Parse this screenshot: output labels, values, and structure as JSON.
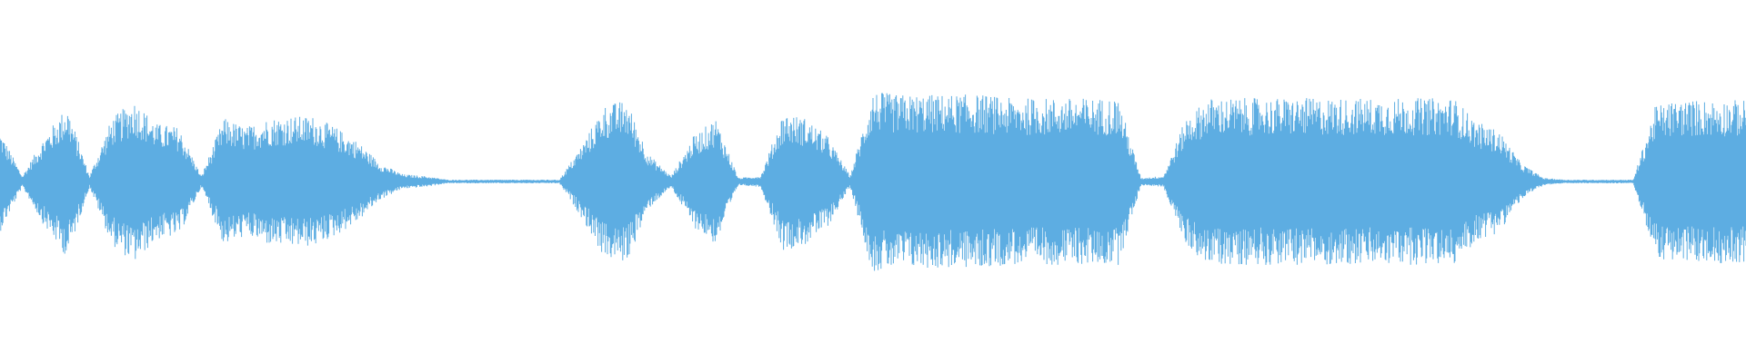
{
  "chart_data": {
    "type": "area",
    "title": "",
    "xlabel": "",
    "ylabel": "",
    "ylim": [
      -1,
      1
    ],
    "grid": false,
    "color": "#5dade2",
    "background": "#ffffff",
    "envelope": [
      0.28,
      0.03,
      0.25,
      0.42,
      0.03,
      0.35,
      0.45,
      0.32,
      0.3,
      0.03,
      0.35,
      0.3,
      0.35,
      0.36,
      0.36,
      0.3,
      0.22,
      0.1,
      0.04,
      0.03,
      0.01,
      0.01,
      0.01,
      0.01,
      0.01,
      0.01,
      0.2,
      0.42,
      0.45,
      0.15,
      0.03,
      0.25,
      0.35,
      0.02,
      0.03,
      0.38,
      0.35,
      0.25,
      0.03,
      0.5,
      0.48,
      0.48,
      0.48,
      0.48,
      0.48,
      0.46,
      0.46,
      0.46,
      0.46,
      0.46,
      0.46,
      0.02,
      0.03,
      0.35,
      0.46,
      0.46,
      0.46,
      0.46,
      0.46,
      0.46,
      0.46,
      0.46,
      0.46,
      0.46,
      0.46,
      0.46,
      0.33,
      0.28,
      0.1,
      0.02,
      0.01,
      0.01,
      0.01,
      0.01,
      0.42,
      0.45,
      0.45,
      0.45,
      0.45
    ]
  }
}
